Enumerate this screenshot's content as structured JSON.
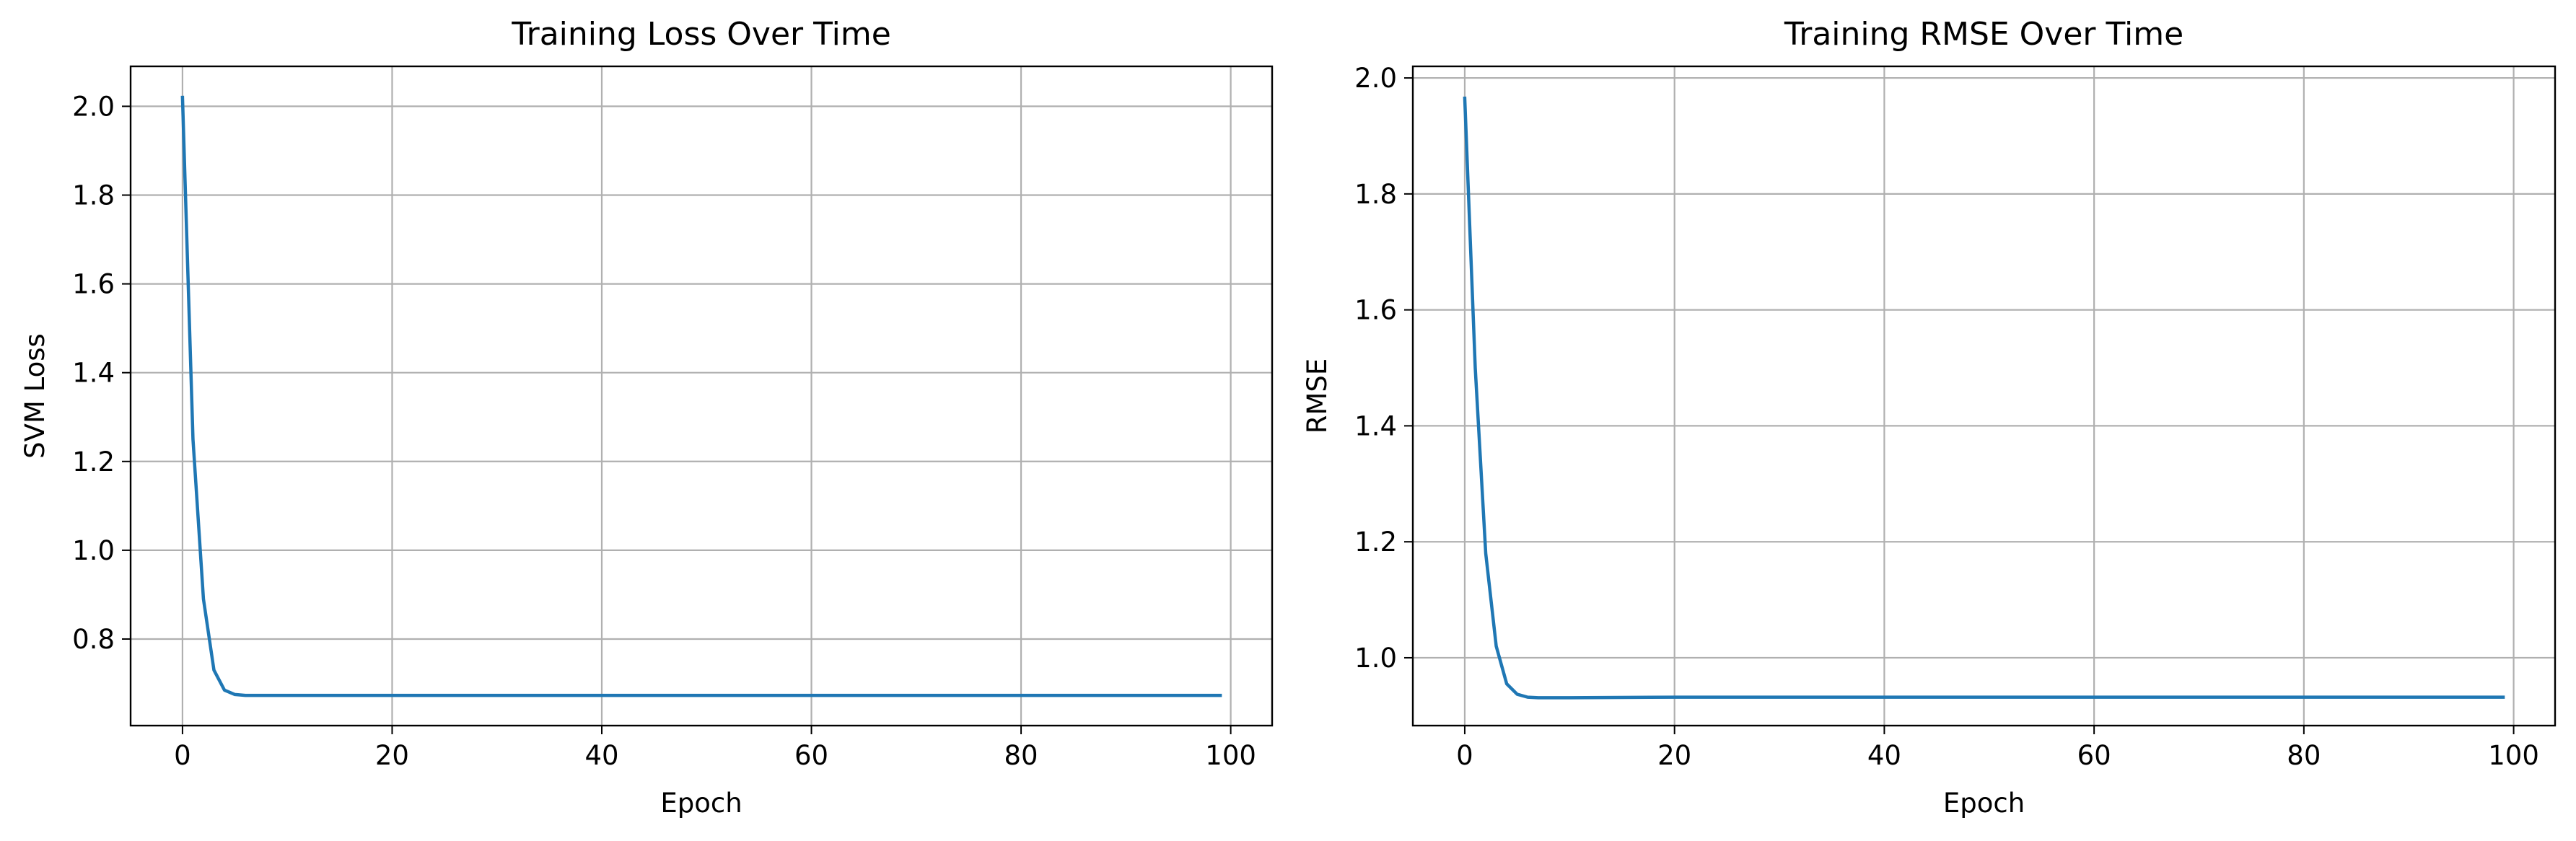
{
  "chart_data": [
    {
      "type": "line",
      "title": "Training Loss Over Time",
      "xlabel": "Epoch",
      "ylabel": "SVM Loss",
      "xlim": [
        -4.95,
        103.95
      ],
      "ylim": [
        0.605,
        2.09
      ],
      "x_ticks": [
        0,
        20,
        40,
        60,
        80,
        100
      ],
      "x_tick_labels": [
        "0",
        "20",
        "40",
        "60",
        "80",
        "100"
      ],
      "y_ticks": [
        0.8,
        1.0,
        1.2,
        1.4,
        1.6,
        1.8,
        2.0
      ],
      "y_tick_labels": [
        "0.8",
        "1.0",
        "1.2",
        "1.4",
        "1.6",
        "1.8",
        "2.0"
      ],
      "grid": true,
      "color": "#1f77b4",
      "series": [
        {
          "x": [
            0,
            1,
            2,
            3,
            4,
            5,
            6,
            7,
            8,
            10,
            20,
            40,
            60,
            80,
            99
          ],
          "values": [
            2.02,
            1.25,
            0.89,
            0.73,
            0.685,
            0.675,
            0.673,
            0.673,
            0.673,
            0.673,
            0.673,
            0.673,
            0.673,
            0.673,
            0.673
          ]
        }
      ]
    },
    {
      "type": "line",
      "title": "Training RMSE Over Time",
      "xlabel": "Epoch",
      "ylabel": "RMSE",
      "xlim": [
        -4.95,
        103.95
      ],
      "ylim": [
        0.883,
        2.02
      ],
      "x_ticks": [
        0,
        20,
        40,
        60,
        80,
        100
      ],
      "x_tick_labels": [
        "0",
        "20",
        "40",
        "60",
        "80",
        "100"
      ],
      "y_ticks": [
        1.0,
        1.2,
        1.4,
        1.6,
        1.8,
        2.0
      ],
      "y_tick_labels": [
        "1.0",
        "1.2",
        "1.4",
        "1.6",
        "1.8",
        "2.0"
      ],
      "grid": true,
      "color": "#1f77b4",
      "series": [
        {
          "x": [
            0,
            1,
            2,
            3,
            4,
            5,
            6,
            7,
            8,
            10,
            20,
            40,
            60,
            80,
            99
          ],
          "values": [
            1.965,
            1.5,
            1.18,
            1.02,
            0.955,
            0.937,
            0.932,
            0.931,
            0.931,
            0.931,
            0.932,
            0.932,
            0.932,
            0.932,
            0.932
          ]
        }
      ]
    }
  ]
}
